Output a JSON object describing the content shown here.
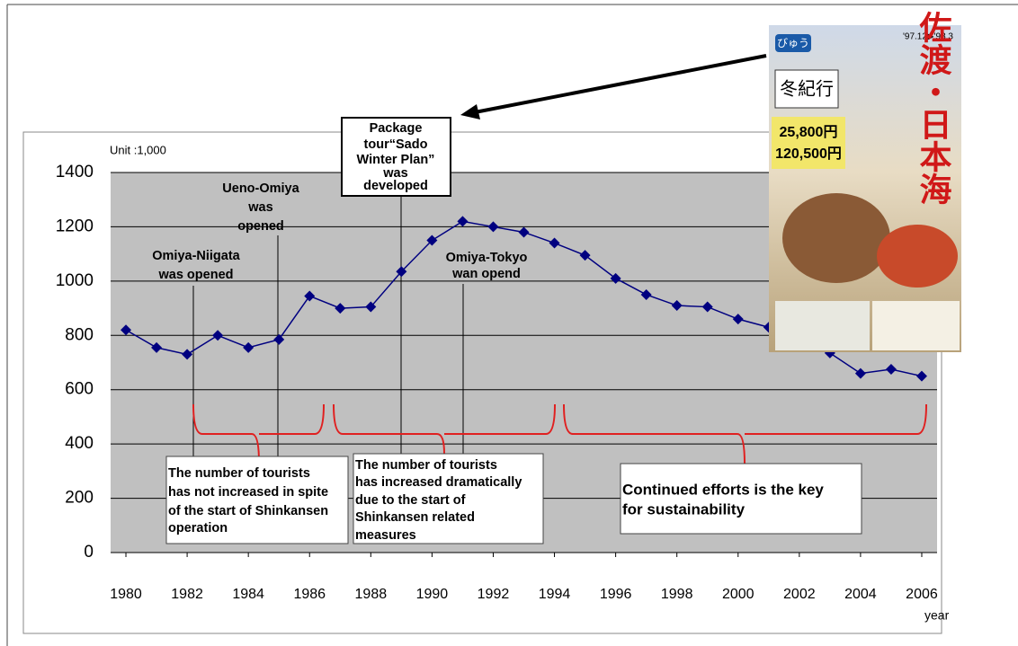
{
  "chart_data": {
    "type": "line",
    "unit_label": "Unit :1,000",
    "x_label": "year",
    "x": [
      1980,
      1981,
      1982,
      1983,
      1984,
      1985,
      1986,
      1987,
      1988,
      1989,
      1990,
      1991,
      1992,
      1993,
      1994,
      1995,
      1996,
      1997,
      1998,
      1999,
      2000,
      2001,
      2002,
      2003,
      2004,
      2005,
      2006
    ],
    "series": [
      {
        "color": "#000080",
        "values": [
          820,
          755,
          730,
          800,
          755,
          785,
          945,
          900,
          905,
          1035,
          1150,
          1220,
          1200,
          1180,
          1140,
          1095,
          1010,
          950,
          910,
          905,
          860,
          830,
          790,
          735,
          660,
          675,
          650
        ]
      }
    ],
    "xlim": [
      1979.5,
      2006.5
    ],
    "xticks": [
      1980,
      1982,
      1984,
      1986,
      1988,
      1990,
      1992,
      1994,
      1996,
      1998,
      2000,
      2002,
      2004,
      2006
    ],
    "ylim": [
      0,
      1400
    ],
    "yticks": [
      0,
      200,
      400,
      600,
      800,
      1000,
      1200,
      1400
    ],
    "grid": true,
    "events": [
      {
        "lines": [
          "Omiya-Niigata",
          "was opened"
        ]
      },
      {
        "lines": [
          "Ueno-Omiya",
          "was",
          "opened"
        ]
      },
      {
        "lines": [
          "Package",
          "tour“Sado",
          "Winter Plan”",
          "was",
          "developed"
        ]
      },
      {
        "lines": [
          "Omiya-Tokyo",
          "wan opend"
        ]
      }
    ],
    "notes": [
      {
        "lines": [
          "The number of tourists",
          "has not increased in spite",
          "of the start of Shinkansen",
          "operation"
        ]
      },
      {
        "lines": [
          "The number of tourists",
          "has increased dramatically",
          "due to the start of",
          "Shinkansen related",
          "measures"
        ]
      },
      {
        "lines": [
          "Continued  efforts is the key",
          "for sustainability"
        ]
      }
    ]
  },
  "poster": {
    "badge": "びゅう",
    "date": "'97.12▶'98.3",
    "title": "佐渡・日本海",
    "subtitle": "冬紀行",
    "price1": "25,800円",
    "price2": "120,500円"
  }
}
